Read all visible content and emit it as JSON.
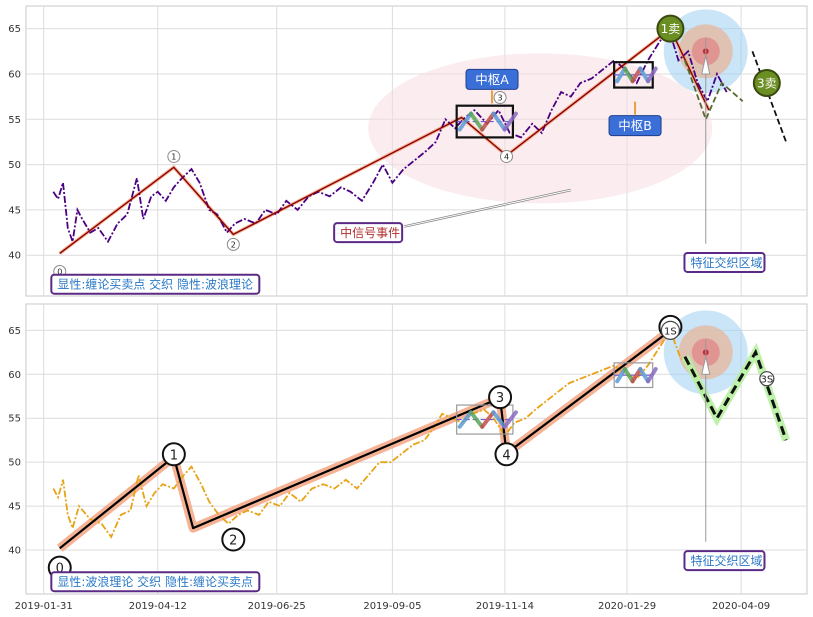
{
  "chart_data": [
    {
      "type": "line",
      "panel": "top",
      "ylim": [
        35.5,
        67.5
      ],
      "yticks": [
        40,
        45,
        50,
        55,
        60,
        65
      ],
      "grid": true,
      "price_series": {
        "color": "#4b0082",
        "points": [
          [
            "2019-02-06",
            47
          ],
          [
            "2019-02-09",
            46.2
          ],
          [
            "2019-02-12",
            48
          ],
          [
            "2019-02-15",
            43
          ],
          [
            "2019-02-18",
            41.5
          ],
          [
            "2019-02-21",
            45
          ],
          [
            "2019-02-24",
            44
          ],
          [
            "2019-03-01",
            42.5
          ],
          [
            "2019-03-06",
            43
          ],
          [
            "2019-03-12",
            41.5
          ],
          [
            "2019-03-18",
            43.5
          ],
          [
            "2019-03-24",
            44.5
          ],
          [
            "2019-03-30",
            48.5
          ],
          [
            "2019-04-03",
            44
          ],
          [
            "2019-04-08",
            46.5
          ],
          [
            "2019-04-12",
            47
          ],
          [
            "2019-04-17",
            46
          ],
          [
            "2019-04-22",
            47.5
          ],
          [
            "2019-04-27",
            48.5
          ],
          [
            "2019-05-03",
            49.5
          ],
          [
            "2019-05-08",
            48
          ],
          [
            "2019-05-14",
            45
          ],
          [
            "2019-05-19",
            44.5
          ],
          [
            "2019-05-25",
            42.5
          ],
          [
            "2019-05-30",
            43.5
          ],
          [
            "2019-06-05",
            44
          ],
          [
            "2019-06-12",
            43.5
          ],
          [
            "2019-06-18",
            45
          ],
          [
            "2019-06-25",
            44.5
          ],
          [
            "2019-07-01",
            46
          ],
          [
            "2019-07-08",
            45
          ],
          [
            "2019-07-15",
            46.5
          ],
          [
            "2019-07-21",
            47
          ],
          [
            "2019-07-28",
            46.5
          ],
          [
            "2019-08-04",
            47.5
          ],
          [
            "2019-08-10",
            47
          ],
          [
            "2019-08-17",
            46
          ],
          [
            "2019-08-24",
            48
          ],
          [
            "2019-08-30",
            50
          ],
          [
            "2019-09-05",
            48
          ],
          [
            "2019-09-12",
            49.5
          ],
          [
            "2019-09-19",
            50.5
          ],
          [
            "2019-09-26",
            51.5
          ],
          [
            "2019-10-02",
            52.5
          ],
          [
            "2019-10-08",
            55
          ],
          [
            "2019-10-14",
            54
          ],
          [
            "2019-10-19",
            55
          ],
          [
            "2019-10-26",
            56
          ],
          [
            "2019-11-03",
            54.5
          ],
          [
            "2019-11-10",
            56
          ],
          [
            "2019-11-17",
            53.5
          ],
          [
            "2019-11-24",
            53
          ],
          [
            "2019-12-01",
            54.5
          ],
          [
            "2019-12-07",
            53.5
          ],
          [
            "2019-12-13",
            56
          ],
          [
            "2019-12-19",
            58
          ],
          [
            "2019-12-25",
            57.5
          ],
          [
            "2019-12-31",
            59
          ],
          [
            "2020-01-07",
            59.5
          ],
          [
            "2020-01-14",
            60.5
          ],
          [
            "2020-01-21",
            61.5
          ],
          [
            "2020-01-28",
            60.5
          ],
          [
            "2020-02-04",
            59
          ],
          [
            "2020-02-11",
            61.5
          ],
          [
            "2020-02-18",
            63.5
          ],
          [
            "2020-02-24",
            65
          ],
          [
            "2020-03-01",
            61.5
          ],
          [
            "2020-03-07",
            62.5
          ],
          [
            "2020-03-13",
            59
          ],
          [
            "2020-03-19",
            57
          ],
          [
            "2020-03-25",
            60
          ],
          [
            "2020-03-31",
            58
          ]
        ]
      },
      "stroke_lines": [
        {
          "color": "#8b0000",
          "points": [
            [
              "2019-02-10",
              40.2
            ],
            [
              "2019-04-22",
              49.7
            ],
            [
              "2019-05-29",
              42.3
            ],
            [
              "2019-10-18",
              55.2
            ],
            [
              "2019-11-15",
              51
            ],
            [
              "2020-02-25",
              65
            ],
            [
              "2020-03-20",
              56
            ]
          ]
        }
      ],
      "wave_labels": [
        {
          "text": "0",
          "x": "2019-02-10",
          "y": 38.2
        },
        {
          "text": "1",
          "x": "2019-04-22",
          "y": 50.9
        },
        {
          "text": "2",
          "x": "2019-05-29",
          "y": 41.2
        },
        {
          "text": "3",
          "x": "2019-11-11",
          "y": 57.4
        },
        {
          "text": "4",
          "x": "2019-11-15",
          "y": 50.9
        }
      ],
      "center_boxes": [
        {
          "label": "中枢A",
          "x0": "2019-10-15",
          "x1": "2019-11-19",
          "y0": 53,
          "y1": 56.5
        },
        {
          "label": "中枢B",
          "x0": "2020-01-21",
          "x1": "2020-02-14",
          "y0": 58.5,
          "y1": 61.3
        }
      ],
      "annotations": [
        {
          "text": "中信号事件",
          "x": "2019-08-01",
          "y": 42.5
        },
        {
          "text": "特征交织区域",
          "x": "2020-03-06",
          "y": 39.2
        },
        {
          "text": "显性:缠论买卖点 交织 隐性:波浪理论",
          "x": "2019-02-06",
          "y": 36.8
        }
      ],
      "markers": [
        {
          "text": "1卖",
          "x": "2020-02-25",
          "y": 65
        },
        {
          "text": "3卖",
          "x": "2020-04-25",
          "y": 59
        }
      ],
      "projection": [
        {
          "points": [
            [
              "2020-03-05",
              61.5
            ],
            [
              "2020-03-18",
              55
            ],
            [
              "2020-03-28",
              59
            ],
            [
              "2020-04-10",
              57
            ]
          ]
        },
        {
          "points": [
            [
              "2020-04-16",
              62.5
            ],
            [
              "2020-05-07",
              52.5
            ]
          ]
        }
      ]
    },
    {
      "type": "line",
      "panel": "bottom",
      "ylim": [
        35,
        68
      ],
      "yticks": [
        40,
        45,
        50,
        55,
        60,
        65
      ],
      "grid": true,
      "price_series": {
        "color": "#e8a317",
        "points": [
          [
            "2019-02-06",
            47
          ],
          [
            "2019-02-09",
            46
          ],
          [
            "2019-02-12",
            48
          ],
          [
            "2019-02-15",
            44
          ],
          [
            "2019-02-18",
            42.5
          ],
          [
            "2019-02-22",
            45
          ],
          [
            "2019-03-01",
            43.5
          ],
          [
            "2019-03-08",
            43
          ],
          [
            "2019-03-14",
            41.5
          ],
          [
            "2019-03-20",
            44
          ],
          [
            "2019-03-26",
            44.5
          ],
          [
            "2019-03-31",
            48.5
          ],
          [
            "2019-04-05",
            45
          ],
          [
            "2019-04-10",
            46.5
          ],
          [
            "2019-04-15",
            47.5
          ],
          [
            "2019-04-22",
            47
          ],
          [
            "2019-04-28",
            48.5
          ],
          [
            "2019-05-03",
            49.5
          ],
          [
            "2019-05-09",
            47.5
          ],
          [
            "2019-05-14",
            45.5
          ],
          [
            "2019-05-20",
            44
          ],
          [
            "2019-05-26",
            43
          ],
          [
            "2019-06-01",
            44
          ],
          [
            "2019-06-07",
            44.5
          ],
          [
            "2019-06-14",
            44
          ],
          [
            "2019-06-20",
            45.5
          ],
          [
            "2019-06-27",
            45
          ],
          [
            "2019-07-03",
            46.5
          ],
          [
            "2019-07-10",
            45.5
          ],
          [
            "2019-07-17",
            47
          ],
          [
            "2019-07-24",
            47.5
          ],
          [
            "2019-07-31",
            47
          ],
          [
            "2019-08-07",
            48
          ],
          [
            "2019-08-14",
            47
          ],
          [
            "2019-08-21",
            48.5
          ],
          [
            "2019-08-28",
            50
          ],
          [
            "2019-09-04",
            50
          ],
          [
            "2019-09-11",
            51
          ],
          [
            "2019-09-18",
            52
          ],
          [
            "2019-09-25",
            52.5
          ],
          [
            "2019-10-01",
            54
          ],
          [
            "2019-10-06",
            55.5
          ],
          [
            "2019-10-12",
            55
          ],
          [
            "2019-10-18",
            54.5
          ],
          [
            "2019-10-25",
            55.5
          ],
          [
            "2019-11-01",
            56
          ],
          [
            "2019-11-07",
            55
          ],
          [
            "2019-11-14",
            53
          ],
          [
            "2019-11-20",
            54.5
          ],
          [
            "2019-11-27",
            55
          ],
          [
            "2019-12-03",
            56
          ],
          [
            "2019-12-10",
            57
          ],
          [
            "2019-12-17",
            58
          ],
          [
            "2019-12-24",
            59
          ],
          [
            "2019-12-31",
            59.5
          ],
          [
            "2020-01-07",
            60
          ],
          [
            "2020-01-14",
            60.5
          ],
          [
            "2020-01-21",
            61
          ],
          [
            "2020-01-28",
            60
          ],
          [
            "2020-02-04",
            59.5
          ],
          [
            "2020-02-11",
            61
          ],
          [
            "2020-02-18",
            63
          ],
          [
            "2020-02-25",
            65
          ],
          [
            "2020-03-02",
            62
          ],
          [
            "2020-03-09",
            60.5
          ],
          [
            "2020-03-16",
            58
          ],
          [
            "2020-03-23",
            56
          ]
        ]
      },
      "stroke_lines": [
        {
          "color": "#000000",
          "points": [
            [
              "2019-02-10",
              40.2
            ],
            [
              "2019-04-22",
              50.6
            ],
            [
              "2019-05-04",
              42.5
            ],
            [
              "2019-11-11",
              57.3
            ],
            [
              "2019-11-15",
              51
            ],
            [
              "2020-02-25",
              65
            ]
          ]
        }
      ],
      "wave_labels": [
        {
          "text": "0",
          "x": "2019-02-10",
          "y": 38
        },
        {
          "text": "1",
          "x": "2019-04-22",
          "y": 50.9
        },
        {
          "text": "2",
          "x": "2019-05-29",
          "y": 41.2
        },
        {
          "text": "3",
          "x": "2019-11-11",
          "y": 57.4
        },
        {
          "text": "4",
          "x": "2019-11-15",
          "y": 50.9
        },
        {
          "text": "5",
          "x": "2020-02-25",
          "y": 65.4
        }
      ],
      "center_boxes": [
        {
          "label": "",
          "x0": "2019-10-15",
          "x1": "2019-11-19",
          "y0": 53.2,
          "y1": 56.5
        },
        {
          "label": "",
          "x0": "2020-01-21",
          "x1": "2020-02-14",
          "y0": 58.5,
          "y1": 61.3
        }
      ],
      "annotations": [
        {
          "text": "特征交织区域",
          "x": "2020-03-06",
          "y": 38.8
        },
        {
          "text": "显性:波浪理论 交织 隐性:缠论买卖点",
          "x": "2019-02-06",
          "y": 36.4
        }
      ],
      "markers": [
        {
          "text": "1S",
          "x": "2020-02-25",
          "y": 65
        },
        {
          "text": "3S",
          "x": "2020-04-25",
          "y": 59.5
        }
      ],
      "projection": [
        {
          "points": [
            [
              "2020-03-05",
              62
            ],
            [
              "2020-03-25",
              55
            ],
            [
              "2020-04-18",
              62.5
            ],
            [
              "2020-05-07",
              52.5
            ]
          ]
        }
      ]
    }
  ],
  "x_axis": {
    "ticks": [
      "2019-01-31",
      "2019-04-12",
      "2019-06-25",
      "2019-09-05",
      "2019-11-14",
      "2020-01-29",
      "2020-04-09"
    ]
  },
  "colors": {
    "highlight": "#f4a582",
    "box_outline": "#111111",
    "annotation_border": "#5b2a86",
    "annotation_text": "#2a78c7",
    "signal_text": "#b03030",
    "center_label_bg": "#3a6fd8",
    "sell_marker": "#6b8e23"
  }
}
